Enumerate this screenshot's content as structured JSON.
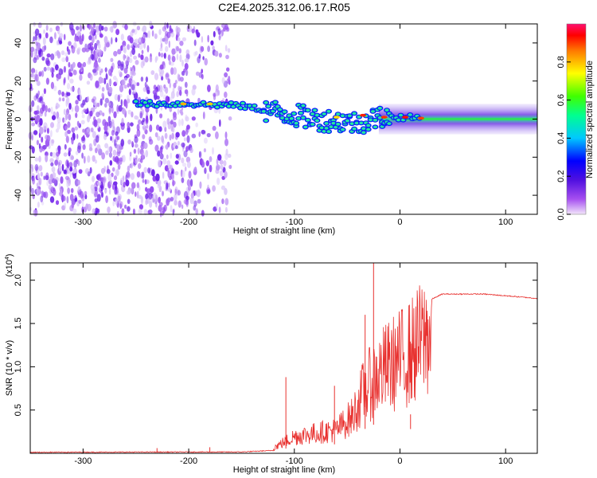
{
  "title": "C2E4.2025.312.06.17.R05",
  "chart_data": [
    {
      "type": "heatmap",
      "name": "spectrogram",
      "xlabel": "Height of straight line (km)",
      "ylabel": "Frequency (Hz)",
      "xlim": [
        -350,
        130
      ],
      "ylim": [
        -50,
        50
      ],
      "xticks": [
        -300,
        -200,
        -100,
        0,
        100
      ],
      "yticks": [
        -40,
        -20,
        0,
        20,
        40
      ],
      "colorbar": {
        "label": "Normalized spectral amplitude",
        "range": [
          0,
          1
        ],
        "ticks": [
          "0.0",
          "0.2",
          "0.4",
          "0.6",
          "0.8"
        ],
        "tick_values": [
          0.0,
          0.2,
          0.4,
          0.6,
          0.8
        ]
      },
      "signal_track": [
        {
          "x": -250,
          "y": 8
        },
        {
          "x": -200,
          "y": 8
        },
        {
          "x": -150,
          "y": 7
        },
        {
          "x": -120,
          "y": 4
        },
        {
          "x": -80,
          "y": 0
        },
        {
          "x": -40,
          "y": -2
        },
        {
          "x": -20,
          "y": 1
        },
        {
          "x": 0,
          "y": 1
        },
        {
          "x": 50,
          "y": 0
        },
        {
          "x": 130,
          "y": 0
        }
      ]
    },
    {
      "type": "line",
      "name": "snr",
      "xlabel": "Height of straight line (km)",
      "ylabel": "SNR (10 * v/v)",
      "yscale_label": "(x10",
      "yscale_exp": "4",
      "yscale_close": ")",
      "xlim": [
        -350,
        130
      ],
      "ylim": [
        0,
        2.2
      ],
      "xticks": [
        -300,
        -200,
        -100,
        0,
        100
      ],
      "yticks": [
        "0.5",
        "1.0",
        "1.5",
        "2.0"
      ],
      "ytick_values": [
        0.5,
        1.0,
        1.5,
        2.0
      ],
      "color": "#e8302e",
      "envelope": [
        {
          "x": -350,
          "y": 0.02
        },
        {
          "x": -200,
          "y": 0.03
        },
        {
          "x": -150,
          "y": 0.03
        },
        {
          "x": -120,
          "y": 0.08
        },
        {
          "x": -100,
          "y": 0.25
        },
        {
          "x": -80,
          "y": 0.3
        },
        {
          "x": -60,
          "y": 0.35
        },
        {
          "x": -45,
          "y": 0.55
        },
        {
          "x": -35,
          "y": 0.9
        },
        {
          "x": -25,
          "y": 1.1
        },
        {
          "x": -15,
          "y": 1.25
        },
        {
          "x": -5,
          "y": 1.35
        },
        {
          "x": 10,
          "y": 1.5
        },
        {
          "x": 25,
          "y": 1.75
        },
        {
          "x": 40,
          "y": 1.84
        },
        {
          "x": 80,
          "y": 1.84
        },
        {
          "x": 130,
          "y": 1.79
        }
      ],
      "spikes": [
        {
          "x": -230,
          "y": 0.06
        },
        {
          "x": -180,
          "y": 0.07
        },
        {
          "x": -108,
          "y": 0.88
        },
        {
          "x": -62,
          "y": 0.78
        },
        {
          "x": -33,
          "y": 1.6
        },
        {
          "x": -25,
          "y": 2.2
        },
        {
          "x": 10,
          "y": 0.28
        }
      ]
    }
  ]
}
